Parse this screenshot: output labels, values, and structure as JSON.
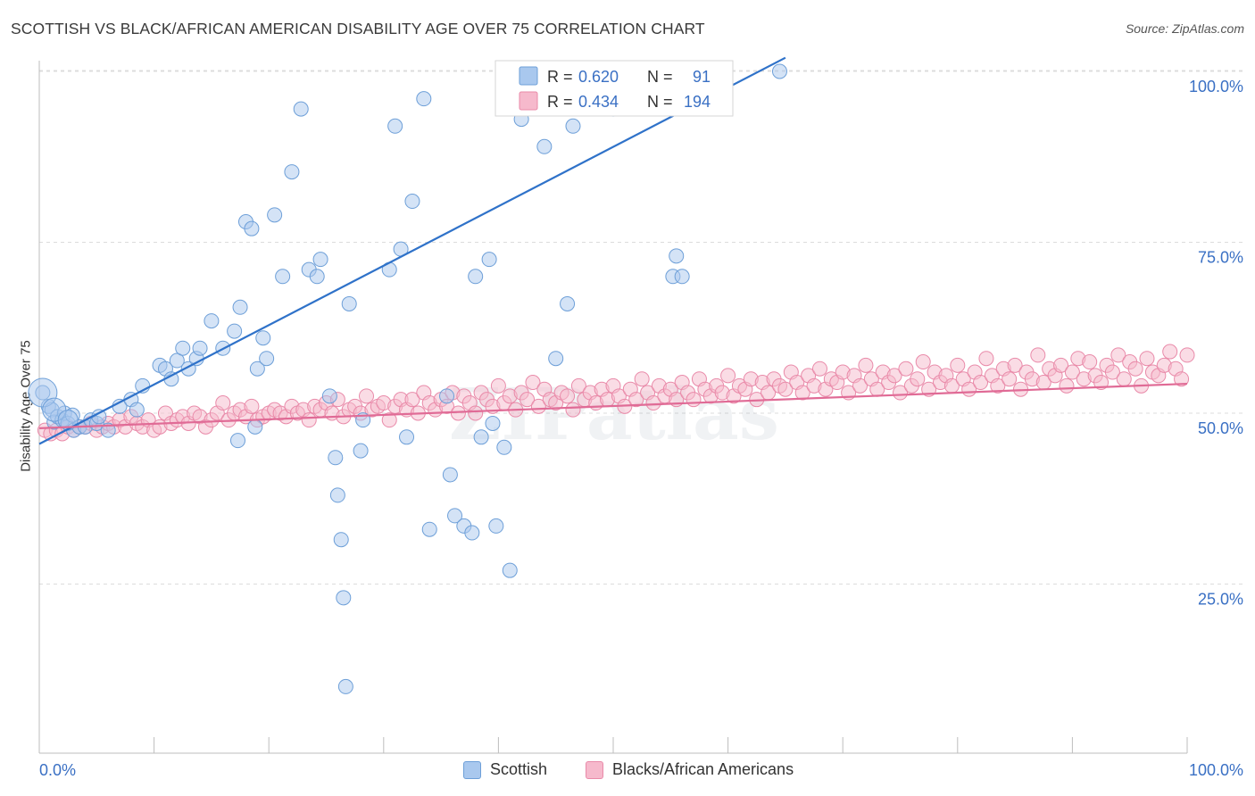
{
  "title": "SCOTTISH VS BLACK/AFRICAN AMERICAN DISABILITY AGE OVER 75 CORRELATION CHART",
  "source": "Source: ZipAtlas.com",
  "watermark": "ZIPatlas",
  "colors": {
    "blue_fill": "#a9c8ee",
    "blue_stroke": "#6d9fd8",
    "blue_line": "#2f72c9",
    "pink_fill": "#f6b9cc",
    "pink_stroke": "#e98aa9",
    "pink_line": "#e06b96",
    "tick_label": "#3a70c4",
    "grid": "#dcdcdc"
  },
  "legend_box": {
    "rows": [
      {
        "r_label": "R =",
        "r_value": "0.620",
        "n_label": "N =",
        "n_value": "91"
      },
      {
        "r_label": "R =",
        "r_value": "0.434",
        "n_label": "N =",
        "n_value": "194"
      }
    ]
  },
  "chart_data": {
    "type": "scatter",
    "xlabel": "",
    "ylabel": "Disability Age Over 75",
    "xlim": [
      0,
      100
    ],
    "ylim": [
      0,
      100
    ],
    "x_tick_labels": [
      "0.0%",
      "100.0%"
    ],
    "y_tick_labels": [
      "100.0%",
      "75.0%",
      "50.0%",
      "25.0%"
    ],
    "y_ticks": [
      100,
      75,
      50,
      25
    ],
    "grid": true,
    "legend_position": "bottom",
    "series": [
      {
        "name": "Scottish",
        "R": 0.62,
        "N": 91,
        "trend": {
          "x": [
            0,
            65
          ],
          "y": [
            45.5,
            102
          ]
        },
        "points": [
          [
            0.3,
            53
          ],
          [
            0.8,
            51
          ],
          [
            1.1,
            50.5
          ],
          [
            1.3,
            48.7
          ],
          [
            1.6,
            49.5
          ],
          [
            2,
            49
          ],
          [
            2.2,
            50
          ],
          [
            2.5,
            48.5
          ],
          [
            2.9,
            49.7
          ],
          [
            3,
            47.5
          ],
          [
            3.5,
            48
          ],
          [
            4,
            48
          ],
          [
            4.5,
            49
          ],
          [
            5,
            48.5
          ],
          [
            5.2,
            49.5
          ],
          [
            6,
            47.5
          ],
          [
            7,
            51
          ],
          [
            8,
            52
          ],
          [
            8.5,
            50.5
          ],
          [
            9,
            54
          ],
          [
            10.5,
            57
          ],
          [
            11,
            56.5
          ],
          [
            11.5,
            55
          ],
          [
            12,
            57.7
          ],
          [
            12.5,
            59.5
          ],
          [
            13,
            56.5
          ],
          [
            13.7,
            58
          ],
          [
            14,
            59.5
          ],
          [
            15,
            63.5
          ],
          [
            16,
            59.5
          ],
          [
            17,
            62
          ],
          [
            17.5,
            65.5
          ],
          [
            18,
            78
          ],
          [
            18.5,
            77
          ],
          [
            19,
            56.5
          ],
          [
            18.8,
            48
          ],
          [
            17.3,
            46
          ],
          [
            19.5,
            61
          ],
          [
            19.8,
            58
          ],
          [
            20.5,
            79
          ],
          [
            21.2,
            70
          ],
          [
            22,
            85.3
          ],
          [
            22.8,
            94.5
          ],
          [
            23.5,
            71
          ],
          [
            24.2,
            70
          ],
          [
            24.5,
            72.5
          ],
          [
            25.3,
            52.5
          ],
          [
            25.8,
            43.5
          ],
          [
            26,
            38
          ],
          [
            26.3,
            31.5
          ],
          [
            26.5,
            23
          ],
          [
            26.7,
            10
          ],
          [
            27,
            66
          ],
          [
            28,
            44.5
          ],
          [
            28.2,
            49
          ],
          [
            30.5,
            71
          ],
          [
            31,
            92
          ],
          [
            31.5,
            74
          ],
          [
            32,
            46.5
          ],
          [
            32.5,
            81
          ],
          [
            33.5,
            96
          ],
          [
            34,
            33
          ],
          [
            35.5,
            52.5
          ],
          [
            35.8,
            41
          ],
          [
            36.2,
            35
          ],
          [
            37,
            33.5
          ],
          [
            37.7,
            32.5
          ],
          [
            38,
            70
          ],
          [
            38.5,
            46.5
          ],
          [
            39.2,
            72.5
          ],
          [
            39.5,
            48.5
          ],
          [
            39.8,
            33.5
          ],
          [
            40.5,
            45
          ],
          [
            41,
            27
          ],
          [
            42,
            93
          ],
          [
            42.2,
            100
          ],
          [
            43,
            99.2
          ],
          [
            44,
            89
          ],
          [
            45,
            58
          ],
          [
            46,
            66
          ],
          [
            46.5,
            92
          ],
          [
            47,
            99
          ],
          [
            48.2,
            95
          ],
          [
            49,
            96
          ],
          [
            50,
            94.5
          ],
          [
            52,
            99.5
          ],
          [
            53,
            98
          ],
          [
            55.5,
            73
          ],
          [
            55.2,
            70
          ],
          [
            56,
            70
          ],
          [
            64.5,
            100
          ]
        ]
      },
      {
        "name": "Blacks/African Americans",
        "R": 0.434,
        "N": 194,
        "trend": {
          "x": [
            0,
            100
          ],
          "y": [
            47.8,
            54.3
          ]
        },
        "points": [
          [
            0.5,
            47.5
          ],
          [
            1,
            47
          ],
          [
            1.5,
            47.5
          ],
          [
            2,
            47
          ],
          [
            2.5,
            48
          ],
          [
            3,
            47.5
          ],
          [
            3.5,
            48
          ],
          [
            4,
            48
          ],
          [
            4.5,
            48.5
          ],
          [
            5,
            47.5
          ],
          [
            5.5,
            48
          ],
          [
            6,
            48.5
          ],
          [
            6.5,
            48
          ],
          [
            7,
            49
          ],
          [
            7.5,
            48
          ],
          [
            8,
            49.5
          ],
          [
            8.5,
            48.5
          ],
          [
            9,
            48
          ],
          [
            9.5,
            49
          ],
          [
            10,
            47.5
          ],
          [
            10.5,
            48
          ],
          [
            11,
            50
          ],
          [
            11.5,
            48.5
          ],
          [
            12,
            49
          ],
          [
            12.5,
            49.5
          ],
          [
            13,
            48.5
          ],
          [
            13.5,
            50
          ],
          [
            14,
            49.5
          ],
          [
            14.5,
            48
          ],
          [
            15,
            49
          ],
          [
            15.5,
            50
          ],
          [
            16,
            51.5
          ],
          [
            16.5,
            49
          ],
          [
            17,
            50
          ],
          [
            17.5,
            50.5
          ],
          [
            18,
            49.5
          ],
          [
            18.5,
            51
          ],
          [
            19,
            49
          ],
          [
            19.5,
            49.5
          ],
          [
            20,
            50
          ],
          [
            20.5,
            50.5
          ],
          [
            21,
            50
          ],
          [
            21.5,
            49.5
          ],
          [
            22,
            51
          ],
          [
            22.5,
            50
          ],
          [
            23,
            50.5
          ],
          [
            23.5,
            49
          ],
          [
            24,
            51
          ],
          [
            24.5,
            50.5
          ],
          [
            25,
            51.5
          ],
          [
            25.5,
            50
          ],
          [
            26,
            52
          ],
          [
            26.5,
            49.5
          ],
          [
            27,
            50.5
          ],
          [
            27.5,
            51
          ],
          [
            28,
            50
          ],
          [
            28.5,
            52.5
          ],
          [
            29,
            50.5
          ],
          [
            29.5,
            51
          ],
          [
            30,
            51.5
          ],
          [
            30.5,
            49
          ],
          [
            31,
            51
          ],
          [
            31.5,
            52
          ],
          [
            32,
            50.5
          ],
          [
            32.5,
            52
          ],
          [
            33,
            50
          ],
          [
            33.5,
            53
          ],
          [
            34,
            51.5
          ],
          [
            34.5,
            50.5
          ],
          [
            35,
            52
          ],
          [
            35.5,
            51
          ],
          [
            36,
            53
          ],
          [
            36.5,
            50
          ],
          [
            37,
            52.5
          ],
          [
            37.5,
            51.5
          ],
          [
            38,
            50
          ],
          [
            38.5,
            53
          ],
          [
            39,
            52
          ],
          [
            39.5,
            51
          ],
          [
            40,
            54
          ],
          [
            40.5,
            51.5
          ],
          [
            41,
            52.5
          ],
          [
            41.5,
            50.5
          ],
          [
            42,
            53
          ],
          [
            42.5,
            52
          ],
          [
            43,
            54.5
          ],
          [
            43.5,
            51
          ],
          [
            44,
            53.5
          ],
          [
            44.5,
            52
          ],
          [
            45,
            51.5
          ],
          [
            45.5,
            53
          ],
          [
            46,
            52.5
          ],
          [
            46.5,
            50.5
          ],
          [
            47,
            54
          ],
          [
            47.5,
            52
          ],
          [
            48,
            53
          ],
          [
            48.5,
            51.5
          ],
          [
            49,
            53.5
          ],
          [
            49.5,
            52
          ],
          [
            50,
            54
          ],
          [
            50.5,
            52.5
          ],
          [
            51,
            51
          ],
          [
            51.5,
            53.5
          ],
          [
            52,
            52
          ],
          [
            52.5,
            55
          ],
          [
            53,
            53
          ],
          [
            53.5,
            51.5
          ],
          [
            54,
            54
          ],
          [
            54.5,
            52.5
          ],
          [
            55,
            53.5
          ],
          [
            55.5,
            52
          ],
          [
            56,
            54.5
          ],
          [
            56.5,
            53
          ],
          [
            57,
            52
          ],
          [
            57.5,
            55
          ],
          [
            58,
            53.5
          ],
          [
            58.5,
            52.5
          ],
          [
            59,
            54
          ],
          [
            59.5,
            53
          ],
          [
            60,
            55.5
          ],
          [
            60.5,
            52.5
          ],
          [
            61,
            54
          ],
          [
            61.5,
            53.5
          ],
          [
            62,
            55
          ],
          [
            62.5,
            52
          ],
          [
            63,
            54.5
          ],
          [
            63.5,
            53
          ],
          [
            64,
            55
          ],
          [
            64.5,
            54
          ],
          [
            65,
            53.5
          ],
          [
            65.5,
            56
          ],
          [
            66,
            54.5
          ],
          [
            66.5,
            53
          ],
          [
            67,
            55.5
          ],
          [
            67.5,
            54
          ],
          [
            68,
            56.5
          ],
          [
            68.5,
            53.5
          ],
          [
            69,
            55
          ],
          [
            69.5,
            54.5
          ],
          [
            70,
            56
          ],
          [
            70.5,
            53
          ],
          [
            71,
            55.5
          ],
          [
            71.5,
            54
          ],
          [
            72,
            57
          ],
          [
            72.5,
            55
          ],
          [
            73,
            53.5
          ],
          [
            73.5,
            56
          ],
          [
            74,
            54.5
          ],
          [
            74.5,
            55.5
          ],
          [
            75,
            53
          ],
          [
            75.5,
            56.5
          ],
          [
            76,
            54
          ],
          [
            76.5,
            55
          ],
          [
            77,
            57.5
          ],
          [
            77.5,
            53.5
          ],
          [
            78,
            56
          ],
          [
            78.5,
            54.5
          ],
          [
            79,
            55.5
          ],
          [
            79.5,
            54
          ],
          [
            80,
            57
          ],
          [
            80.5,
            55
          ],
          [
            81,
            53.5
          ],
          [
            81.5,
            56
          ],
          [
            82,
            54.5
          ],
          [
            82.5,
            58
          ],
          [
            83,
            55.5
          ],
          [
            83.5,
            54
          ],
          [
            84,
            56.5
          ],
          [
            84.5,
            55
          ],
          [
            85,
            57
          ],
          [
            85.5,
            53.5
          ],
          [
            86,
            56
          ],
          [
            86.5,
            55
          ],
          [
            87,
            58.5
          ],
          [
            87.5,
            54.5
          ],
          [
            88,
            56.5
          ],
          [
            88.5,
            55.5
          ],
          [
            89,
            57
          ],
          [
            89.5,
            54
          ],
          [
            90,
            56
          ],
          [
            90.5,
            58
          ],
          [
            91,
            55
          ],
          [
            91.5,
            57.5
          ],
          [
            92,
            55.5
          ],
          [
            92.5,
            54.5
          ],
          [
            93,
            57
          ],
          [
            93.5,
            56
          ],
          [
            94,
            58.5
          ],
          [
            94.5,
            55
          ],
          [
            95,
            57.5
          ],
          [
            95.5,
            56.5
          ],
          [
            96,
            54
          ],
          [
            96.5,
            58
          ],
          [
            97,
            56
          ],
          [
            97.5,
            55.5
          ],
          [
            98,
            57
          ],
          [
            98.5,
            59
          ],
          [
            99,
            56.5
          ],
          [
            99.5,
            55
          ],
          [
            100,
            58.5
          ]
        ]
      }
    ]
  }
}
